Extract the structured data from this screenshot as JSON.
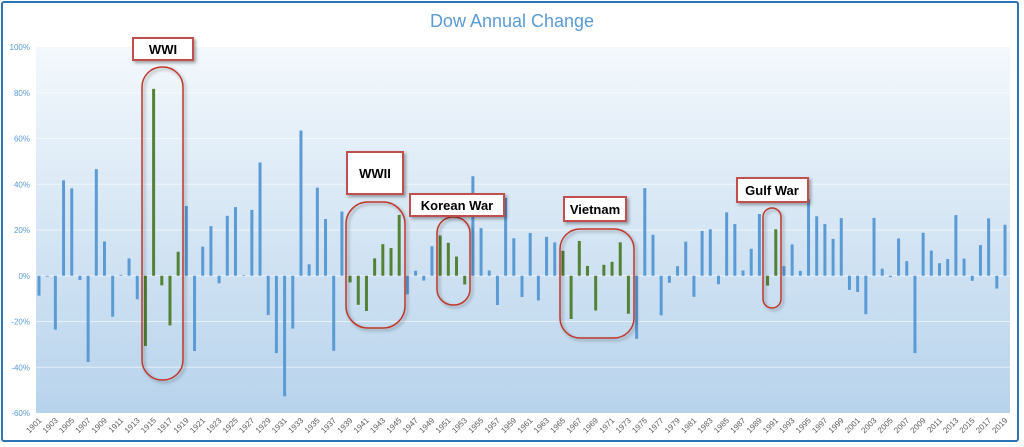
{
  "chart_data": {
    "type": "bar",
    "title": "Dow Annual Change",
    "xlabel": "",
    "ylabel": "",
    "ylim": [
      -60,
      100
    ],
    "y_ticks": [
      "100%",
      "80%",
      "60%",
      "40%",
      "20%",
      "0%",
      "-20%",
      "-40%",
      "-60%"
    ],
    "grid": true,
    "colors": {
      "normal": "#5b9bd5",
      "war": "#548235",
      "annotation": "#c0504d"
    },
    "start_year": 1901,
    "values": [
      -8.7,
      -0.4,
      -23.6,
      41.7,
      38.2,
      -1.9,
      -37.7,
      46.6,
      15.0,
      -17.9,
      0.4,
      7.6,
      -10.3,
      -30.7,
      81.7,
      -4.2,
      -21.7,
      10.5,
      30.5,
      -32.9,
      12.7,
      21.7,
      -3.3,
      26.2,
      30.0,
      0.3,
      28.8,
      49.5,
      -17.2,
      -33.8,
      -52.7,
      -23.1,
      63.5,
      5.0,
      38.5,
      24.8,
      -32.8,
      28.1,
      -2.9,
      -12.7,
      -15.4,
      7.6,
      13.8,
      12.1,
      26.6,
      -8.1,
      2.2,
      -2.1,
      12.9,
      17.6,
      14.4,
      8.4,
      -3.8,
      43.5,
      20.8,
      2.3,
      -12.8,
      34.0,
      16.4,
      -9.3,
      18.7,
      -10.8,
      17.0,
      14.6,
      10.9,
      -18.9,
      15.2,
      4.3,
      -15.2,
      4.8,
      6.1,
      14.6,
      -16.6,
      -27.6,
      38.3,
      17.9,
      -17.3,
      -3.1,
      4.2,
      14.9,
      -9.2,
      19.6,
      20.3,
      -3.7,
      27.7,
      22.6,
      2.3,
      11.8,
      27.0,
      -4.3,
      20.3,
      4.2,
      13.7,
      2.1,
      33.5,
      26.0,
      22.6,
      16.1,
      25.2,
      -6.2,
      -7.1,
      -16.8,
      25.3,
      3.1,
      -0.6,
      16.3,
      6.4,
      -33.8,
      18.8,
      11.0,
      5.5,
      7.3,
      26.5,
      7.5,
      -2.2,
      13.4,
      25.1,
      -5.6,
      22.3
    ],
    "war_periods": [
      [
        1914,
        1918
      ],
      [
        1939,
        1945
      ],
      [
        1950,
        1953
      ],
      [
        1965,
        1973
      ],
      [
        1990,
        1991
      ]
    ],
    "annotations": [
      "WWI",
      "WWII",
      "Korean War",
      "Vietnam",
      "Gulf War"
    ]
  }
}
